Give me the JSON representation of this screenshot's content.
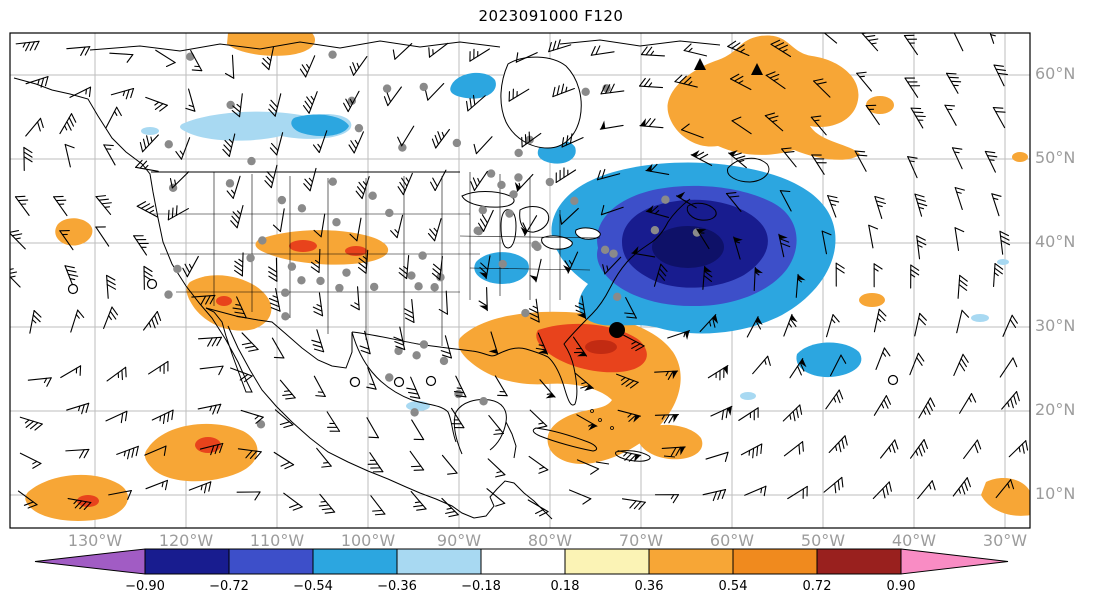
{
  "chart_data": {
    "type": "heatmap",
    "title": "2023091000 F120",
    "x_tick_labels": [
      "130°W",
      "120°W",
      "110°W",
      "100°W",
      "90°W",
      "80°W",
      "70°W",
      "60°W",
      "50°W",
      "40°W",
      "30°W"
    ],
    "y_tick_labels": [
      "60°N",
      "50°N",
      "40°N",
      "30°N",
      "20°N",
      "10°N"
    ],
    "grid": true,
    "colorbar": {
      "orientation": "horizontal",
      "extend": "both",
      "levels": [
        -0.9,
        -0.72,
        -0.54,
        -0.36,
        -0.18,
        0.18,
        0.36,
        0.54,
        0.72,
        0.9
      ],
      "tick_labels": [
        "−0.90",
        "−0.72",
        "−0.54",
        "−0.36",
        "−0.18",
        "0.18",
        "0.36",
        "0.54",
        "0.72",
        "0.90"
      ],
      "colors": [
        "#A15CC4",
        "#181C8F",
        "#3D4FC9",
        "#2CA6E0",
        "#A8D9F2",
        "#FFFFFF",
        "#FBF3B5",
        "#F7A636",
        "#F08A1E",
        "#99201E",
        "#F98CC4"
      ]
    },
    "overlays": [
      "anomaly-shading",
      "latitude-longitude-grid",
      "coastlines",
      "state-borders",
      "station-dots",
      "open-station-circles",
      "wind-barbs",
      "storm-center-marker",
      "triangle-markers"
    ]
  },
  "map_colors": {
    "shade_orange": "#F7A636",
    "shade_red": "#E8431C",
    "shade_dark_red": "#C22B12",
    "shade_pale_blue": "#A8D9F2",
    "shade_cyan": "#2CA6E0",
    "shade_royal": "#3D4FC9",
    "shade_navy": "#181C8F",
    "shade_dark_navy": "#0E1168",
    "grid_line": "#BDBDBD",
    "coast_line": "#000000",
    "tick_label": "#9C9C9C",
    "station_dot": "#8A8A8A",
    "barb": "#000000"
  }
}
